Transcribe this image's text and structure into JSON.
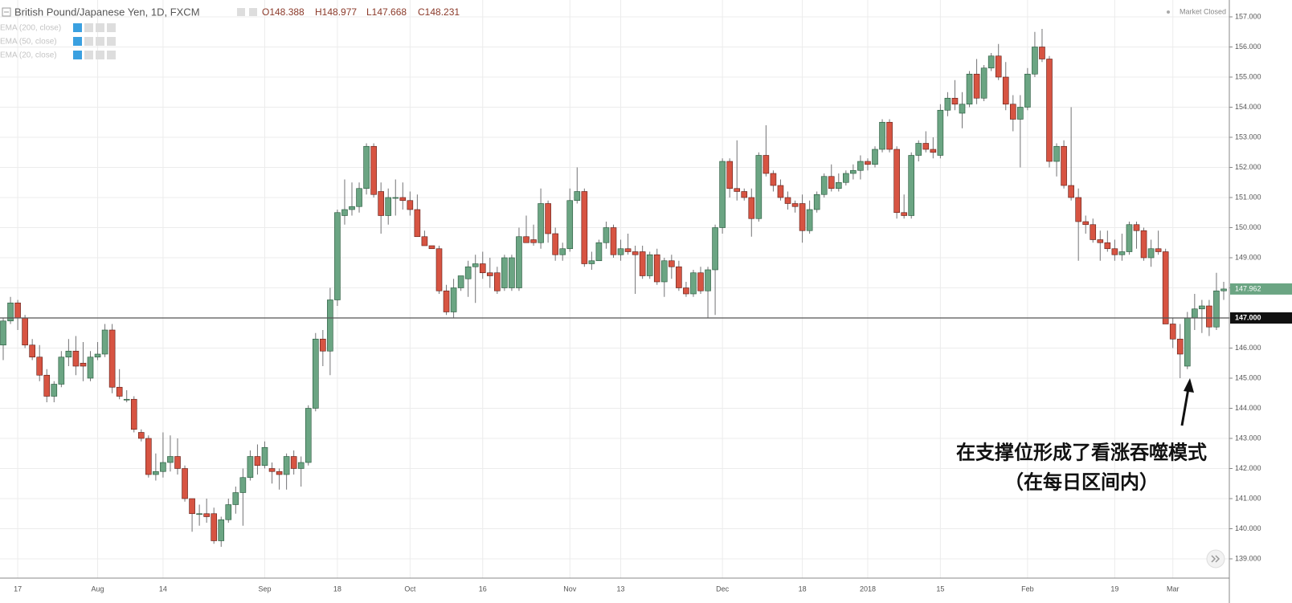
{
  "chart_data": {
    "type": "candlestick",
    "title": "British Pound/Japanese Yen, 1D, FXCM",
    "header_stats": [
      "O148.388",
      "H148.977",
      "L147.668",
      "C148.231"
    ],
    "indicators": [
      "EMA (200, close)",
      "EMA (50, close)",
      "EMA (20, close)"
    ],
    "status": "Market Closed",
    "annotation": [
      "在支撑位形成了看涨吞噬模式",
      "（在每日区间内）"
    ],
    "up_color": "#6ba583",
    "down_color": "#d75442",
    "ylim": [
      138.36,
      157.56
    ],
    "yticks": [
      {
        "value": 139,
        "label": "139.000"
      },
      {
        "value": 140,
        "label": "140.000"
      },
      {
        "value": 141,
        "label": "141.000"
      },
      {
        "value": 142,
        "label": "142.000"
      },
      {
        "value": 143,
        "label": "143.000"
      },
      {
        "value": 144,
        "label": "144.000"
      },
      {
        "value": 145,
        "label": "145.000"
      },
      {
        "value": 146,
        "label": "146.000"
      },
      {
        "value": 147,
        "label": "147.000"
      },
      {
        "value": 148,
        "label": "148.000"
      },
      {
        "value": 149,
        "label": "149.000"
      },
      {
        "value": 150,
        "label": "150.000"
      },
      {
        "value": 151,
        "label": "151.000"
      },
      {
        "value": 152,
        "label": "152.000"
      },
      {
        "value": 153,
        "label": "153.000"
      },
      {
        "value": 154,
        "label": "154.000"
      },
      {
        "value": 155,
        "label": "155.000"
      },
      {
        "value": 156,
        "label": "156.000"
      },
      {
        "value": 157,
        "label": "157.000"
      }
    ],
    "hline": {
      "value": 147,
      "label": "147.000"
    },
    "close_label": "147.962",
    "grid": true,
    "categories": [
      null,
      null,
      "17",
      null,
      null,
      null,
      null,
      null,
      null,
      null,
      null,
      null,
      null,
      "Aug",
      null,
      null,
      null,
      null,
      null,
      null,
      null,
      null,
      "14",
      null,
      null,
      null,
      null,
      null,
      null,
      null,
      null,
      null,
      null,
      null,
      null,
      null,
      "Sep",
      null,
      null,
      null,
      null,
      null,
      null,
      null,
      null,
      null,
      "18",
      null,
      null,
      null,
      null,
      null,
      null,
      null,
      null,
      null,
      "Oct",
      null,
      null,
      null,
      null,
      null,
      null,
      null,
      null,
      null,
      "16",
      null,
      null,
      null,
      null,
      null,
      null,
      null,
      null,
      null,
      null,
      null,
      "Nov",
      null,
      null,
      null,
      null,
      null,
      null,
      "13",
      null,
      null,
      null,
      null,
      null,
      null,
      null,
      null,
      null,
      null,
      null,
      null,
      null,
      "Dec",
      null,
      null,
      null,
      null,
      null,
      null,
      null,
      null,
      null,
      null,
      "18",
      null,
      null,
      null,
      null,
      null,
      null,
      null,
      null,
      "2018",
      null,
      null,
      null,
      null,
      null,
      null,
      null,
      null,
      null,
      "15",
      null,
      null,
      null,
      null,
      null,
      null,
      null,
      null,
      null,
      null,
      null,
      "Feb",
      null,
      null,
      null,
      null,
      null,
      null,
      null,
      null,
      null,
      null,
      null,
      "19",
      null,
      null,
      null,
      null,
      null,
      null,
      null,
      "Mar",
      null,
      null,
      null,
      null,
      null,
      null,
      null
    ],
    "open": [
      146.1,
      146.9,
      147.5,
      147.0,
      146.1,
      145.7,
      145.1,
      144.4,
      144.8,
      145.7,
      145.9,
      145.5,
      145.0,
      145.7,
      145.8,
      146.6,
      144.7,
      144.3,
      144.3,
      143.2,
      143.0,
      141.8,
      141.9,
      142.2,
      142.4,
      142.0,
      141.0,
      140.5,
      140.5,
      140.5,
      139.6,
      140.3,
      140.8,
      141.2,
      141.7,
      142.4,
      142.1,
      142.0,
      141.9,
      141.8,
      142.4,
      142.0,
      142.2,
      144.0,
      146.3,
      145.9,
      147.6,
      150.4,
      150.6,
      150.7,
      151.3,
      152.7,
      151.2,
      150.4,
      151.0,
      151.0,
      150.9,
      150.6,
      149.7,
      149.4,
      149.3,
      147.9,
      147.2,
      148.0,
      148.3,
      148.7,
      148.8,
      148.5,
      148.5,
      148.0,
      148.0,
      148.0,
      149.7,
      149.6,
      149.5,
      150.8,
      149.8,
      149.1,
      149.3,
      150.9,
      151.2,
      148.8,
      148.9,
      149.5,
      150.0,
      149.1,
      149.3,
      149.2,
      149.2,
      148.4,
      149.1,
      148.2,
      148.9,
      148.7,
      148.0,
      147.8,
      148.5,
      147.9,
      148.6,
      150.0,
      152.2,
      151.3,
      151.2,
      151.0,
      150.3,
      152.4,
      151.8,
      151.4,
      151.0,
      150.8,
      150.8,
      149.9,
      150.6,
      151.1,
      151.7,
      151.3,
      151.5,
      151.8,
      151.9,
      152.2,
      152.1,
      152.6,
      153.5,
      152.6,
      150.5,
      150.4,
      152.4,
      152.8,
      152.6,
      152.4,
      153.9,
      154.3,
      153.8,
      154.1,
      155.1,
      154.3,
      155.3,
      155.7,
      155.0,
      154.1,
      153.6,
      154.0,
      155.1,
      156.0,
      155.6,
      152.2,
      152.7,
      151.4,
      151.0,
      150.2,
      150.1,
      149.6,
      149.5,
      149.3,
      149.1,
      149.2,
      150.1,
      149.9,
      149.0,
      149.3,
      149.2,
      146.8,
      146.3,
      145.4,
      147.0,
      147.3,
      147.4,
      146.7,
      147.9
    ],
    "high": [
      147.0,
      147.7,
      147.6,
      147.1,
      146.3,
      146.1,
      145.3,
      144.9,
      145.9,
      146.3,
      146.4,
      146.2,
      145.9,
      146.2,
      146.8,
      146.8,
      145.3,
      144.6,
      144.4,
      143.3,
      143.1,
      142.5,
      143.2,
      143.1,
      143.0,
      142.1,
      141.0,
      140.8,
      141.0,
      140.7,
      140.4,
      141.0,
      141.4,
      142.0,
      142.6,
      142.8,
      142.9,
      142.2,
      142.0,
      142.5,
      142.6,
      142.4,
      144.1,
      146.5,
      146.6,
      148.0,
      150.6,
      151.6,
      151.5,
      151.5,
      152.8,
      152.8,
      151.5,
      151.3,
      151.6,
      151.5,
      151.2,
      151.1,
      149.9,
      149.4,
      149.4,
      148.1,
      148.3,
      148.4,
      148.9,
      149.1,
      149.2,
      149.0,
      148.7,
      149.1,
      149.1,
      150.0,
      150.4,
      150.1,
      151.3,
      150.9,
      150.0,
      149.5,
      151.3,
      152.0,
      151.3,
      149.2,
      149.6,
      150.2,
      150.1,
      149.6,
      149.8,
      149.4,
      149.4,
      149.2,
      149.3,
      149.0,
      149.1,
      148.9,
      148.2,
      148.6,
      148.7,
      148.7,
      150.1,
      152.3,
      152.3,
      152.9,
      151.3,
      151.3,
      152.5,
      153.4,
      151.9,
      151.6,
      151.2,
      150.9,
      151.1,
      150.9,
      151.2,
      151.8,
      152.1,
      151.8,
      151.9,
      152.1,
      152.4,
      152.3,
      152.7,
      153.6,
      153.6,
      152.7,
      151.1,
      152.5,
      152.9,
      153.2,
      153.0,
      154.1,
      154.5,
      154.9,
      154.5,
      155.2,
      155.6,
      155.4,
      155.8,
      156.1,
      155.5,
      154.4,
      154.4,
      155.3,
      156.5,
      156.6,
      155.7,
      152.8,
      152.9,
      154.0,
      151.3,
      150.4,
      150.3,
      149.9,
      149.9,
      149.6,
      149.8,
      150.2,
      150.2,
      150.0,
      149.6,
      149.9,
      149.3,
      147.0,
      146.8,
      147.2,
      147.8,
      147.6,
      147.6,
      148.5,
      148.2
    ],
    "low": [
      145.6,
      146.8,
      146.6,
      146.0,
      145.6,
      144.9,
      144.2,
      144.2,
      144.7,
      145.4,
      145.1,
      144.9,
      144.9,
      145.6,
      145.7,
      144.5,
      144.3,
      144.2,
      143.2,
      142.9,
      141.7,
      141.6,
      141.7,
      141.9,
      141.8,
      140.9,
      139.9,
      140.1,
      140.2,
      139.5,
      139.4,
      140.2,
      140.5,
      140.1,
      141.6,
      141.8,
      142.0,
      141.5,
      141.3,
      141.3,
      141.8,
      141.4,
      142.1,
      143.9,
      145.4,
      145.1,
      147.4,
      150.1,
      150.4,
      150.5,
      151.1,
      151.0,
      149.8,
      150.1,
      150.4,
      150.6,
      150.4,
      149.7,
      149.4,
      149.3,
      147.8,
      147.1,
      147.0,
      147.9,
      147.7,
      147.5,
      148.3,
      148.0,
      147.8,
      147.9,
      147.9,
      147.9,
      149.5,
      149.4,
      149.3,
      149.5,
      148.9,
      148.9,
      149.2,
      150.8,
      148.7,
      148.6,
      148.9,
      149.3,
      149.0,
      148.9,
      149.1,
      147.8,
      148.3,
      148.3,
      148.1,
      147.7,
      148.3,
      147.9,
      147.7,
      147.7,
      147.8,
      147.0,
      147.1,
      149.8,
      151.0,
      150.9,
      150.9,
      149.7,
      150.2,
      151.7,
      151.2,
      150.9,
      150.6,
      150.5,
      149.5,
      149.8,
      150.5,
      151.0,
      151.2,
      151.2,
      151.4,
      151.6,
      151.6,
      151.9,
      152.0,
      152.5,
      152.5,
      150.3,
      150.3,
      150.3,
      152.2,
      152.5,
      152.3,
      152.3,
      153.7,
      153.9,
      153.3,
      154.0,
      154.1,
      154.2,
      155.2,
      154.9,
      153.9,
      153.2,
      152.0,
      153.9,
      155.0,
      155.5,
      152.0,
      151.7,
      151.3,
      150.9,
      148.9,
      149.8,
      149.5,
      148.9,
      149.2,
      148.9,
      148.9,
      149.1,
      149.3,
      148.9,
      148.7,
      149.1,
      146.8,
      146.0,
      145.0,
      145.3,
      146.6,
      146.5,
      146.4,
      146.6,
      147.6
    ],
    "close": [
      146.9,
      147.5,
      147.0,
      146.1,
      145.7,
      145.1,
      144.4,
      144.8,
      145.7,
      145.9,
      145.4,
      145.4,
      145.7,
      145.8,
      146.6,
      144.7,
      144.4,
      144.3,
      143.3,
      143.0,
      141.8,
      141.9,
      142.2,
      142.4,
      142.0,
      141.0,
      140.5,
      140.5,
      140.4,
      139.6,
      140.3,
      140.8,
      141.2,
      141.7,
      142.4,
      142.1,
      142.7,
      141.9,
      141.8,
      142.4,
      142.0,
      142.2,
      144.0,
      146.3,
      145.9,
      147.6,
      150.5,
      150.6,
      150.7,
      151.3,
      152.7,
      151.1,
      150.4,
      151.0,
      151.0,
      150.9,
      150.6,
      149.7,
      149.4,
      149.3,
      147.9,
      147.2,
      148.0,
      148.4,
      148.7,
      148.8,
      148.5,
      148.4,
      147.9,
      149.0,
      149.0,
      149.7,
      149.5,
      149.5,
      150.8,
      149.8,
      149.1,
      149.3,
      150.9,
      151.2,
      148.8,
      148.9,
      149.5,
      150.0,
      149.1,
      149.3,
      149.2,
      149.1,
      148.4,
      149.1,
      148.2,
      148.9,
      148.7,
      148.0,
      147.8,
      148.5,
      147.9,
      148.6,
      150.0,
      152.2,
      151.3,
      151.2,
      151.0,
      150.3,
      152.4,
      151.8,
      151.4,
      151.0,
      150.8,
      150.7,
      149.9,
      150.6,
      151.1,
      151.7,
      151.3,
      151.5,
      151.8,
      151.9,
      152.2,
      152.1,
      152.6,
      153.5,
      152.6,
      150.5,
      150.4,
      152.4,
      152.8,
      152.6,
      152.5,
      153.9,
      154.3,
      154.1,
      154.1,
      155.1,
      154.3,
      155.3,
      155.7,
      155.0,
      154.1,
      153.6,
      154.0,
      155.1,
      156.0,
      155.6,
      152.2,
      152.7,
      151.4,
      151.0,
      150.2,
      150.1,
      149.6,
      149.5,
      149.3,
      149.1,
      149.2,
      150.1,
      149.9,
      149.0,
      149.3,
      149.2,
      146.8,
      146.3,
      145.8,
      147.0,
      147.3,
      147.4,
      146.7,
      147.9,
      147.962
    ]
  }
}
